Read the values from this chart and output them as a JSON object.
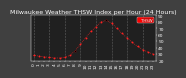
{
  "title": "Milwaukee Weather THSW Index per Hour (24 Hours)",
  "x_hours": [
    0,
    1,
    2,
    3,
    4,
    5,
    6,
    7,
    8,
    9,
    10,
    11,
    12,
    13,
    14,
    15,
    16,
    17,
    18,
    19,
    20,
    21,
    22,
    23
  ],
  "thsw_values": [
    28,
    27,
    26,
    25,
    24,
    24,
    25,
    28,
    35,
    45,
    55,
    65,
    72,
    80,
    82,
    78,
    70,
    62,
    55,
    48,
    42,
    37,
    33,
    30
  ],
  "black_dot_hours": [
    8,
    14
  ],
  "ylim": [
    20,
    90
  ],
  "xlim": [
    -0.5,
    23.5
  ],
  "ytick_vals": [
    20,
    30,
    40,
    50,
    60,
    70,
    80,
    90
  ],
  "ytick_labels": [
    "20",
    "30",
    "40",
    "50",
    "60",
    "70",
    "80",
    "90"
  ],
  "xtick_labels": [
    "0",
    "1",
    "2",
    "3",
    "4",
    "5",
    "6",
    "7",
    "8",
    "9",
    "10",
    "11",
    "12",
    "13",
    "14",
    "15",
    "16",
    "17",
    "18",
    "19",
    "20",
    "21",
    "22",
    "23"
  ],
  "fig_bg_color": "#404040",
  "plot_bg": "#202020",
  "grid_color": "#606060",
  "red_color": "#ff2020",
  "black_color": "#000000",
  "white_color": "#ffffff",
  "legend_label": "THSW",
  "legend_bg": "#ff0000",
  "title_fontsize": 4.5,
  "tick_fontsize": 3.2,
  "marker_size": 1.8,
  "line_width": 0.5,
  "dashed_grid_hours": [
    0,
    3,
    6,
    9,
    12,
    15,
    18,
    21
  ]
}
